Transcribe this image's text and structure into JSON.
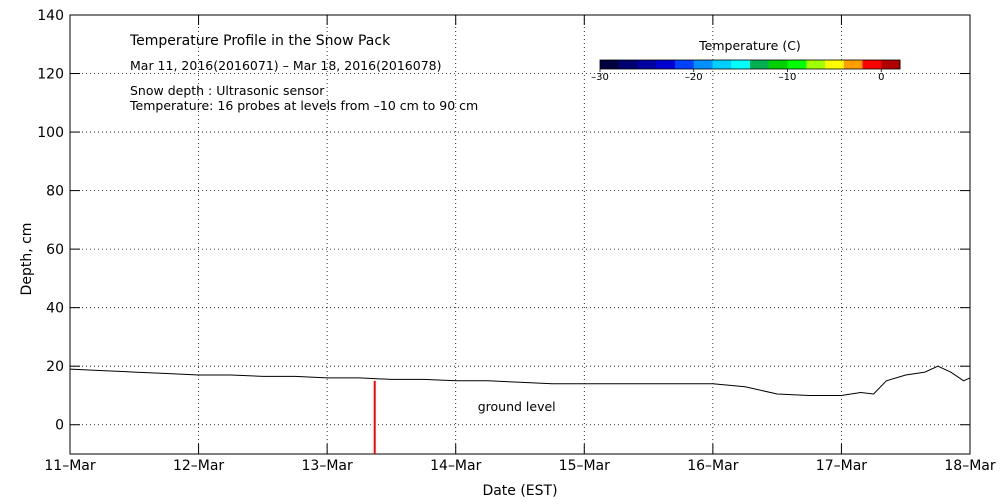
{
  "chart_data": {
    "type": "line",
    "title": "Temperature Profile in the Snow Pack",
    "subtitle": "Mar 11, 2016(2016071) – Mar 18, 2016(2016078)",
    "notes": [
      "Snow depth : Ultrasonic sensor",
      "Temperature: 16 probes at levels from –10 cm to 90 cm"
    ],
    "xlabel": "Date (EST)",
    "ylabel": "Depth, cm",
    "x_ticks": [
      "11–Mar",
      "12–Mar",
      "13–Mar",
      "14–Mar",
      "15–Mar",
      "16–Mar",
      "17–Mar",
      "18–Mar"
    ],
    "xlim": [
      0,
      7
    ],
    "ylim": [
      -10,
      140
    ],
    "y_ticks": [
      0,
      20,
      40,
      60,
      80,
      100,
      120,
      140
    ],
    "grid": true,
    "series": [
      {
        "color": "#000000",
        "x": [
          0.0,
          0.25,
          0.5,
          0.75,
          1.0,
          1.25,
          1.5,
          1.75,
          2.0,
          2.25,
          2.5,
          2.75,
          3.0,
          3.25,
          3.5,
          3.75,
          4.0,
          4.25,
          4.5,
          4.75,
          5.0,
          5.25,
          5.5,
          5.75,
          6.0,
          6.15,
          6.25,
          6.35,
          6.5,
          6.65,
          6.75,
          6.85,
          6.95,
          7.0
        ],
        "y": [
          19,
          18.5,
          18,
          17.5,
          17,
          17,
          16.5,
          16.5,
          16,
          16,
          15.5,
          15.5,
          15,
          15,
          14.5,
          14,
          14,
          14,
          14,
          14,
          14,
          13,
          10.5,
          10,
          10,
          11,
          10.5,
          15,
          17,
          18,
          20,
          18,
          15,
          16
        ]
      }
    ],
    "annotations": [
      {
        "text": "ground level",
        "x": 3.0,
        "y": 3
      }
    ],
    "marker": {
      "color": "#ff0000",
      "x": 2.37,
      "y_top": 15,
      "y_bottom": -10
    },
    "colorbar": {
      "title": "Temperature (C)",
      "tick_labels": [
        "–30",
        "–20",
        "–10",
        "0"
      ],
      "tick_values": [
        -30,
        -20,
        -10,
        0
      ],
      "range": [
        -30,
        2
      ],
      "colors": [
        "#000040",
        "#000070",
        "#0000a0",
        "#0000d0",
        "#0040ff",
        "#0090ff",
        "#00d0ff",
        "#00ffff",
        "#00b050",
        "#00d000",
        "#00ff00",
        "#a0ff00",
        "#ffff00",
        "#ffa000",
        "#ff0000",
        "#b00000"
      ]
    }
  }
}
